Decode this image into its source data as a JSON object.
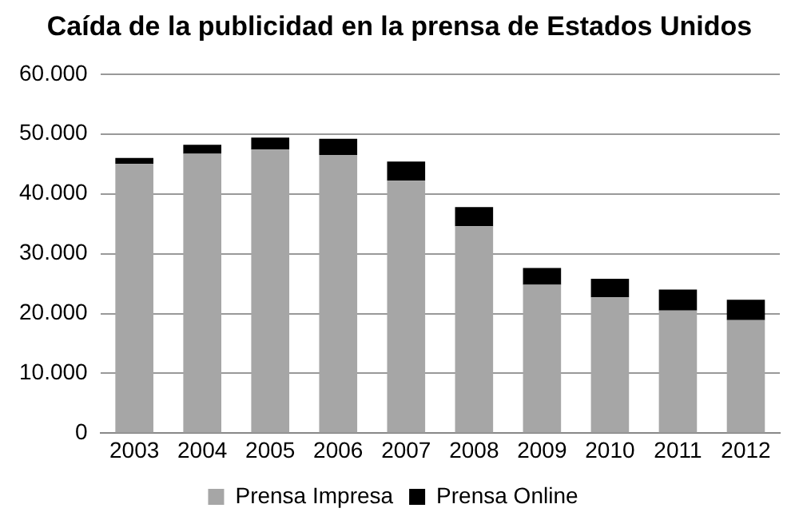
{
  "chart_data": {
    "type": "bar",
    "title": "Caída de la publicidad en la prensa de Estados Unidos",
    "categories": [
      "2003",
      "2004",
      "2005",
      "2006",
      "2007",
      "2008",
      "2009",
      "2010",
      "2011",
      "2012"
    ],
    "stacked": true,
    "series": [
      {
        "name": "Prensa Impresa",
        "color": "#a6a6a6",
        "values": [
          45000,
          46700,
          47400,
          46500,
          42200,
          34600,
          24800,
          22700,
          20500,
          18900
        ]
      },
      {
        "name": "Prensa Online",
        "color": "#000000",
        "values": [
          1000,
          1500,
          2000,
          2700,
          3200,
          3200,
          2800,
          3100,
          3500,
          3400
        ]
      }
    ],
    "ylim": [
      0,
      60000
    ],
    "yticks": [
      {
        "value": 0,
        "label": "0"
      },
      {
        "value": 10000,
        "label": "10.000"
      },
      {
        "value": 20000,
        "label": "20.000"
      },
      {
        "value": 30000,
        "label": "30.000"
      },
      {
        "value": 40000,
        "label": "40.000"
      },
      {
        "value": 50000,
        "label": "50.000"
      },
      {
        "value": 60000,
        "label": "60.000"
      }
    ],
    "grid": "y",
    "legend": "bottom"
  }
}
